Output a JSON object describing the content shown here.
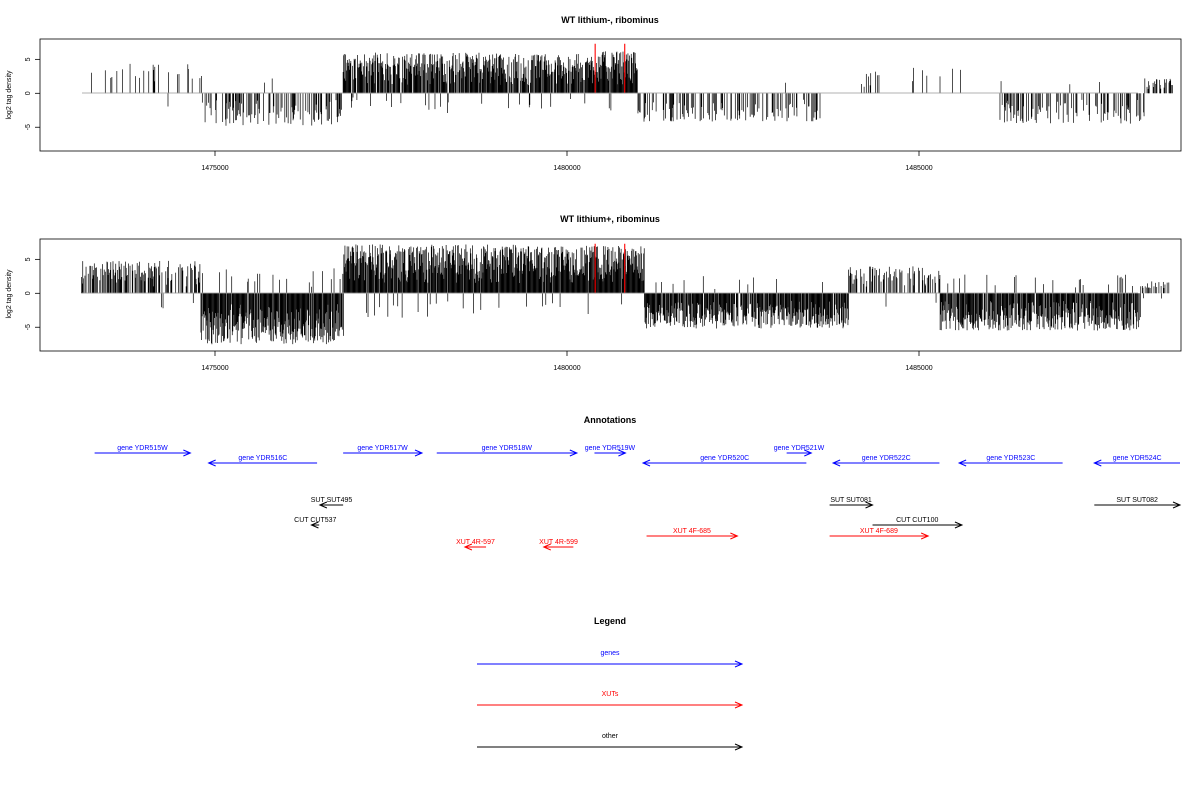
{
  "chart_data": [
    {
      "type": "bar",
      "title": "WT lithium-, ribominus",
      "ylabel": "log2 tag density",
      "xlim": [
        1473000,
        1488800
      ],
      "ylim": [
        -8.5,
        8
      ],
      "x_ticks": [
        1475000,
        1480000,
        1485000
      ],
      "x_tick_labels": [
        "1475000",
        "1480000",
        "1485000"
      ],
      "y_ticks": [
        -5,
        0,
        5
      ],
      "y_tick_labels": [
        "-5",
        "0",
        "5"
      ],
      "markers": [
        1480400,
        1480820
      ],
      "marker_color": "#ff0000",
      "series": [
        {
          "segments": [
            {
              "from": 1473090,
              "to": 1474820,
              "density": 0.14,
              "max": 4.5
            },
            {
              "from": 1474820,
              "to": 1476820,
              "density": 0.45,
              "max": -4.8
            },
            {
              "from": 1476820,
              "to": 1479050,
              "density": 0.9,
              "max": 6.0
            },
            {
              "from": 1479050,
              "to": 1480350,
              "density": 0.9,
              "max": 5.8
            },
            {
              "from": 1480350,
              "to": 1481000,
              "density": 1.0,
              "max": 6.2
            },
            {
              "from": 1481000,
              "to": 1483600,
              "density": 0.35,
              "max": -4.2
            },
            {
              "from": 1483900,
              "to": 1485600,
              "density": 0.07,
              "max": 3.8
            },
            {
              "from": 1486150,
              "to": 1488200,
              "density": 0.3,
              "max": -4.5
            },
            {
              "from": 1488200,
              "to": 1488600,
              "density": 0.35,
              "max": 2.2
            }
          ]
        }
      ]
    },
    {
      "type": "bar",
      "title": "WT lithium+, ribominus",
      "ylabel": "log2 tag density",
      "xlim": [
        1473000,
        1488800
      ],
      "ylim": [
        -8.5,
        8
      ],
      "x_ticks": [
        1475000,
        1480000,
        1485000
      ],
      "x_tick_labels": [
        "1475000",
        "1480000",
        "1485000"
      ],
      "y_ticks": [
        -5,
        0,
        5
      ],
      "y_tick_labels": [
        "-5",
        "0",
        "5"
      ],
      "markers": [
        1480400,
        1480820
      ],
      "marker_color": "#ff0000",
      "series": [
        {
          "segments": [
            {
              "from": 1473090,
              "to": 1474800,
              "density": 0.55,
              "max": 4.8
            },
            {
              "from": 1474800,
              "to": 1476830,
              "density": 1.0,
              "max": -7.5
            },
            {
              "from": 1476830,
              "to": 1479300,
              "density": 1.0,
              "max": 7.2
            },
            {
              "from": 1479300,
              "to": 1481100,
              "density": 1.0,
              "max": 7.0
            },
            {
              "from": 1481100,
              "to": 1484000,
              "density": 0.9,
              "max": -5.2
            },
            {
              "from": 1484000,
              "to": 1485300,
              "density": 0.45,
              "max": 4.0
            },
            {
              "from": 1485300,
              "to": 1488150,
              "density": 0.9,
              "max": -5.5
            },
            {
              "from": 1488150,
              "to": 1488550,
              "density": 0.4,
              "max": 1.8
            }
          ]
        }
      ]
    },
    {
      "type": "annotation-track",
      "title": "Annotations",
      "features": [
        {
          "label": "gene YDR515W",
          "strand": "+",
          "from": 1473290,
          "to": 1474650,
          "row": 0,
          "color": "#0000ff"
        },
        {
          "label": "gene YDR516C",
          "strand": "-",
          "from": 1474910,
          "to": 1476450,
          "row": 1,
          "color": "#0000ff"
        },
        {
          "label": "gene YDR517W",
          "strand": "+",
          "from": 1476820,
          "to": 1477940,
          "row": 0,
          "color": "#0000ff"
        },
        {
          "label": "gene YDR518W",
          "strand": "+",
          "from": 1478150,
          "to": 1480140,
          "row": 0,
          "color": "#0000ff"
        },
        {
          "label": "gene YDR519W",
          "strand": "+",
          "from": 1480390,
          "to": 1480830,
          "row": 0,
          "color": "#0000ff"
        },
        {
          "label": "gene YDR520C",
          "strand": "-",
          "from": 1481080,
          "to": 1483400,
          "row": 1,
          "color": "#0000ff"
        },
        {
          "label": "gene YDR521W",
          "strand": "+",
          "from": 1483120,
          "to": 1483470,
          "row": 0,
          "color": "#0000ff"
        },
        {
          "label": "gene YDR522C",
          "strand": "-",
          "from": 1483780,
          "to": 1485290,
          "row": 1,
          "color": "#0000ff"
        },
        {
          "label": "gene YDR523C",
          "strand": "-",
          "from": 1485570,
          "to": 1487040,
          "row": 1,
          "color": "#0000ff"
        },
        {
          "label": "gene YDR524C",
          "strand": "-",
          "from": 1487490,
          "to": 1488780,
          "row": 1,
          "color": "#0000ff"
        },
        {
          "label": "SUT SUT495",
          "strand": "-",
          "from": 1476490,
          "to": 1476820,
          "row": 3,
          "color": "#000000"
        },
        {
          "label": "CUT CUT537",
          "strand": "-",
          "from": 1476370,
          "to": 1476480,
          "row": 4,
          "color": "#000000"
        },
        {
          "label": "SUT SUT081",
          "strand": "+",
          "from": 1483730,
          "to": 1484340,
          "row": 3,
          "color": "#000000"
        },
        {
          "label": "CUT CUT100",
          "strand": "+",
          "from": 1484340,
          "to": 1485610,
          "row": 4,
          "color": "#000000"
        },
        {
          "label": "SUT SUT082",
          "strand": "+",
          "from": 1487490,
          "to": 1488780,
          "row": 3,
          "color": "#000000"
        },
        {
          "label": "XUT 4R-597",
          "strand": "-",
          "from": 1478550,
          "to": 1478850,
          "row": 6,
          "color": "#ff0000"
        },
        {
          "label": "XUT 4R-599",
          "strand": "-",
          "from": 1479670,
          "to": 1480090,
          "row": 6,
          "color": "#ff0000"
        },
        {
          "label": "XUT 4F-685",
          "strand": "+",
          "from": 1481130,
          "to": 1482420,
          "row": 5,
          "color": "#ff0000"
        },
        {
          "label": "XUT 4F-689",
          "strand": "+",
          "from": 1483730,
          "to": 1485130,
          "row": 5,
          "color": "#ff0000"
        }
      ]
    }
  ],
  "legend": {
    "title": "Legend",
    "items": [
      {
        "label": "genes",
        "color": "#0000ff"
      },
      {
        "label": "XUTs",
        "color": "#ff0000"
      },
      {
        "label": "other",
        "color": "#000000"
      }
    ]
  }
}
